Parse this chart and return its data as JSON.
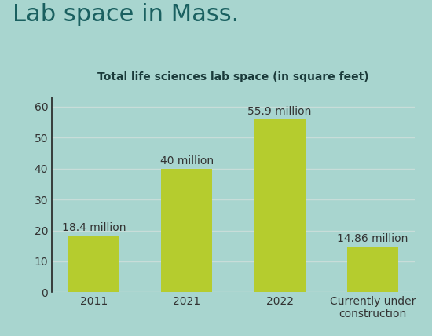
{
  "title": "Lab space in Mass.",
  "subtitle": "Total life sciences lab space (in square feet)",
  "categories": [
    "2011",
    "2021",
    "2022",
    "Currently under\nconstruction"
  ],
  "values": [
    18.4,
    40.0,
    55.9,
    14.86
  ],
  "labels": [
    "18.4 million",
    "40 million",
    "55.9 million",
    "14.86 million"
  ],
  "bar_color": "#b5cc2e",
  "background_color": "#a8d5cf",
  "title_color": "#1a6060",
  "subtitle_color": "#1a3a3a",
  "tick_label_color": "#333333",
  "value_label_color": "#333333",
  "ylim": [
    0,
    63
  ],
  "yticks": [
    0,
    10,
    20,
    30,
    40,
    50,
    60
  ],
  "title_fontsize": 22,
  "subtitle_fontsize": 10,
  "tick_fontsize": 10,
  "label_fontsize": 10,
  "grid_color": "#c8ddd9",
  "figsize": [
    5.5,
    4.28
  ],
  "dpi": 100
}
